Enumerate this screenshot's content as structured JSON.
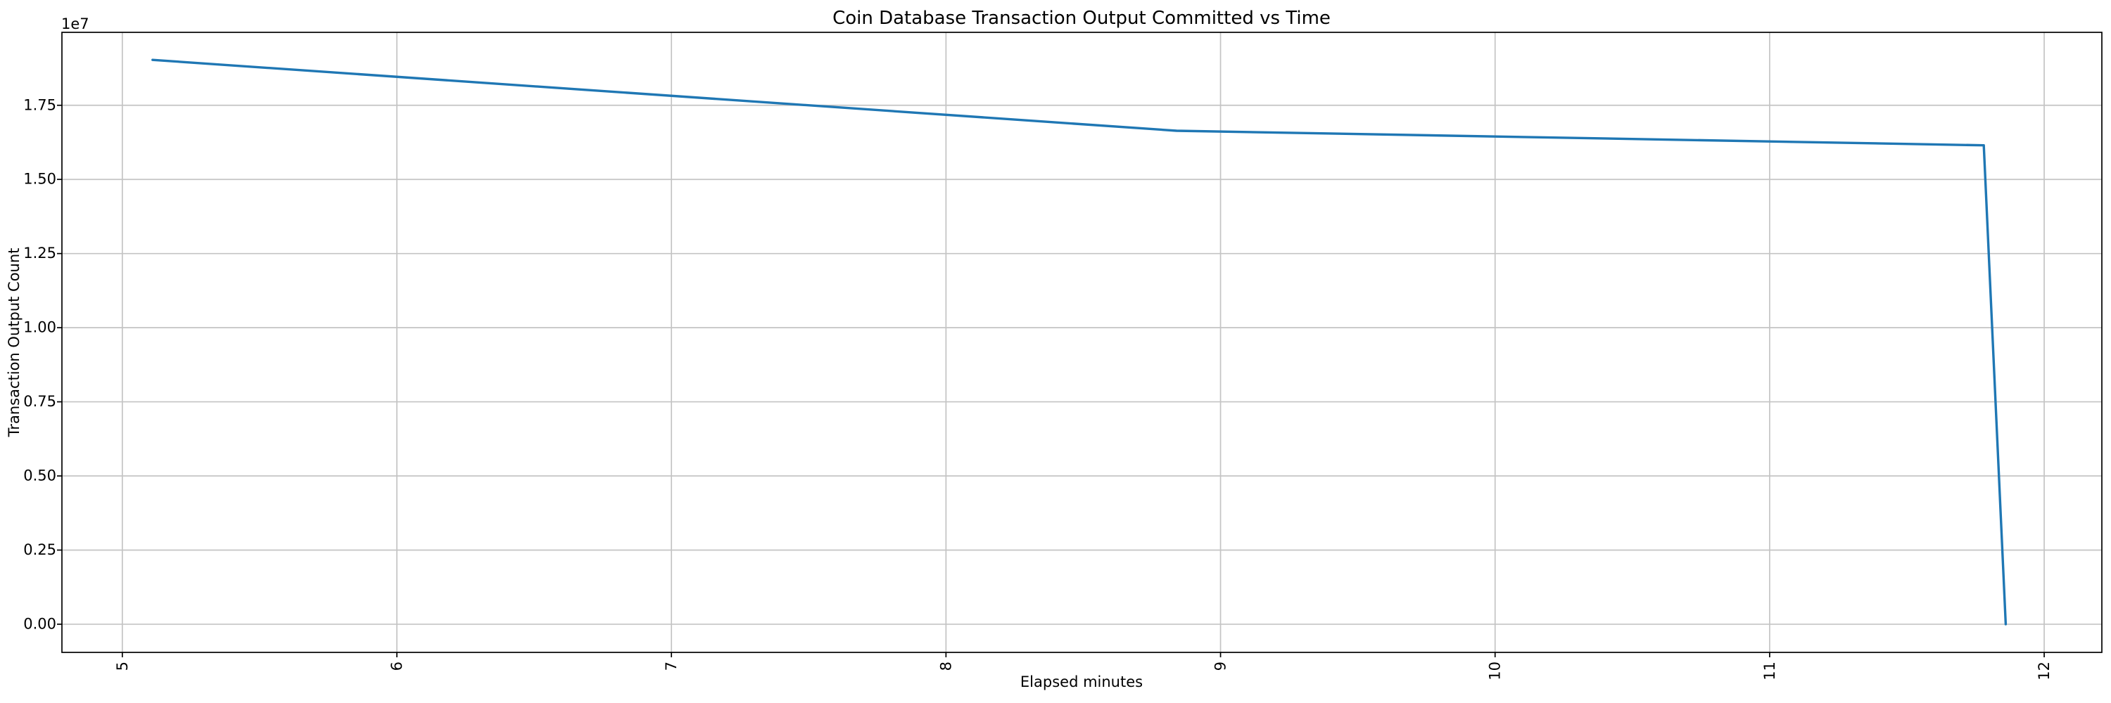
{
  "figure": {
    "background": "#ffffff"
  },
  "chart_data": {
    "type": "line",
    "title": "Coin Database Transaction Output Committed vs Time",
    "xlabel": "Elapsed minutes",
    "ylabel": "Transaction Output Count",
    "y_offset_label": "1e7",
    "grid": true,
    "legend": "none",
    "line_color": "#1f77b4",
    "grid_color": "#c4c4c4",
    "spine_color": "#000000",
    "xlim": [
      4.78,
      12.21
    ],
    "ylim": [
      -950000,
      19960000
    ],
    "xticks": [
      5,
      6,
      7,
      8,
      9,
      10,
      11,
      12
    ],
    "xtick_labels": [
      "5",
      "6",
      "7",
      "8",
      "9",
      "10",
      "11",
      "12"
    ],
    "xtick_rotation_deg": 90,
    "yticks": [
      0,
      2500000,
      5000000,
      7500000,
      10000000,
      12500000,
      15000000,
      17500000
    ],
    "ytick_labels": [
      "0.00",
      "0.25",
      "0.50",
      "0.75",
      "1.00",
      "1.25",
      "1.50",
      "1.75"
    ],
    "x": [
      5.11,
      8.84,
      11.78,
      11.86
    ],
    "y": [
      19030000,
      16640000,
      16150000,
      0
    ]
  }
}
